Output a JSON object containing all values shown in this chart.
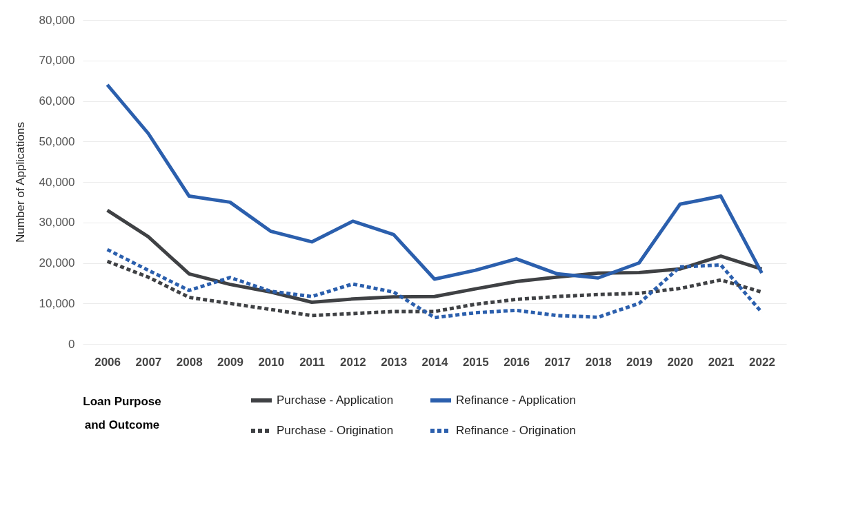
{
  "chart_data": {
    "type": "line",
    "ylabel": "Number of Applications",
    "legend_title": "Loan Purpose and Outcome",
    "legend": "bottom",
    "grid": "y",
    "marker": "none",
    "categories": [
      "2006",
      "2007",
      "2008",
      "2009",
      "2010",
      "2011",
      "2012",
      "2013",
      "2014",
      "2015",
      "2016",
      "2017",
      "2018",
      "2019",
      "2020",
      "2021",
      "2022"
    ],
    "ylim": [
      0,
      80000
    ],
    "yticks": [
      0,
      {
        "value": 10000,
        "label": "10,000"
      },
      {
        "value": 20000,
        "label": "20,000"
      },
      {
        "value": 30000,
        "label": "30,000"
      },
      {
        "value": 40000,
        "label": "40,000"
      },
      {
        "value": 50000,
        "label": "50,000"
      },
      {
        "value": 60000,
        "label": "60,000"
      },
      {
        "value": 70000,
        "label": "70,000"
      },
      {
        "value": 80000,
        "label": "80,000"
      }
    ],
    "series": [
      {
        "name": "Purchase - Application",
        "color": "#3f4144",
        "line_style": "solid",
        "values": [
          33000,
          26500,
          17300,
          14700,
          12800,
          10300,
          11100,
          11600,
          11700,
          13600,
          15400,
          16500,
          17500,
          17600,
          18500,
          21700,
          18500
        ]
      },
      {
        "name": "Refinance - Application",
        "color": "#2b5fad",
        "line_style": "solid",
        "values": [
          64000,
          52000,
          36500,
          35000,
          27800,
          25200,
          30300,
          27000,
          16000,
          18200,
          21000,
          17300,
          16300,
          20000,
          34500,
          36500,
          17500
        ]
      },
      {
        "name": "Purchase - Origination",
        "color": "#3f4144",
        "line_style": "dashed",
        "values": [
          20400,
          16500,
          11500,
          10000,
          8500,
          7000,
          7500,
          8000,
          8000,
          9800,
          11000,
          11700,
          12200,
          12500,
          13700,
          15800,
          12800
        ]
      },
      {
        "name": "Refinance - Origination",
        "color": "#2b5fad",
        "line_style": "dashed",
        "values": [
          23300,
          18200,
          13200,
          16400,
          13000,
          11700,
          14800,
          12800,
          6500,
          7700,
          8300,
          7000,
          6600,
          10000,
          19000,
          19500,
          7800
        ]
      }
    ]
  }
}
